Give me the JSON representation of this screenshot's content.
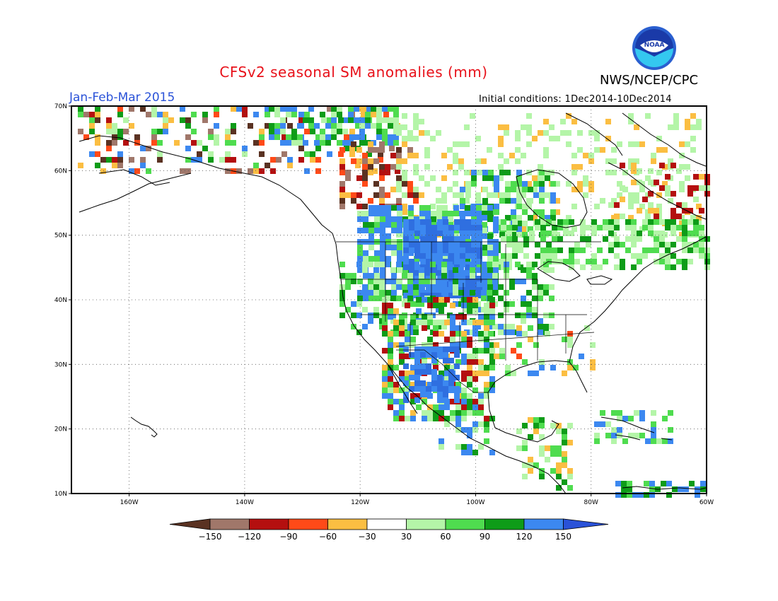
{
  "header": {
    "title": "CFSv2 seasonal SM anomalies (mm)",
    "agency": "NWS/NCEP/CPC",
    "period": "Jan-Feb-Mar 2015",
    "initial_conditions": "Initial conditions: 1Dec2014-10Dec2014",
    "logo_text": "NOAA"
  },
  "map": {
    "lat_labels": [
      "70N",
      "60N",
      "50N",
      "40N",
      "30N",
      "20N",
      "10N"
    ],
    "lon_labels": [
      "160W",
      "140W",
      "120W",
      "100W",
      "80W",
      "60W"
    ],
    "lat_values": [
      70,
      60,
      50,
      40,
      30,
      20,
      10
    ],
    "lon_values": [
      -160,
      -140,
      -120,
      -100,
      -80,
      -60
    ],
    "extent": {
      "lon_min": -170,
      "lon_max": -60,
      "lat_min": 10,
      "lat_max": 70
    }
  },
  "colorbar": {
    "labels": [
      "-150",
      "-120",
      "-90",
      "-60",
      "-30",
      "30",
      "60",
      "90",
      "120",
      "150"
    ],
    "colors": [
      "#5a3222",
      "#a0776a",
      "#b40f0f",
      "#ff4a18",
      "#fbbe42",
      "#ffffff",
      "#b4f5a8",
      "#4fdc4f",
      "#0e9c18",
      "#3c88f0",
      "#2a52d8"
    ]
  },
  "legend_colors": {
    "deep_blue": "#2f6fe0",
    "blue": "#3c88f0",
    "dark_green": "#0e9c18",
    "green": "#4fdc4f",
    "light_green": "#b4f5a8",
    "orange": "#fbbe42",
    "red_orange": "#ff4a18",
    "dark_red": "#b40f0f",
    "brown": "#5a3222",
    "tan": "#a0776a"
  }
}
